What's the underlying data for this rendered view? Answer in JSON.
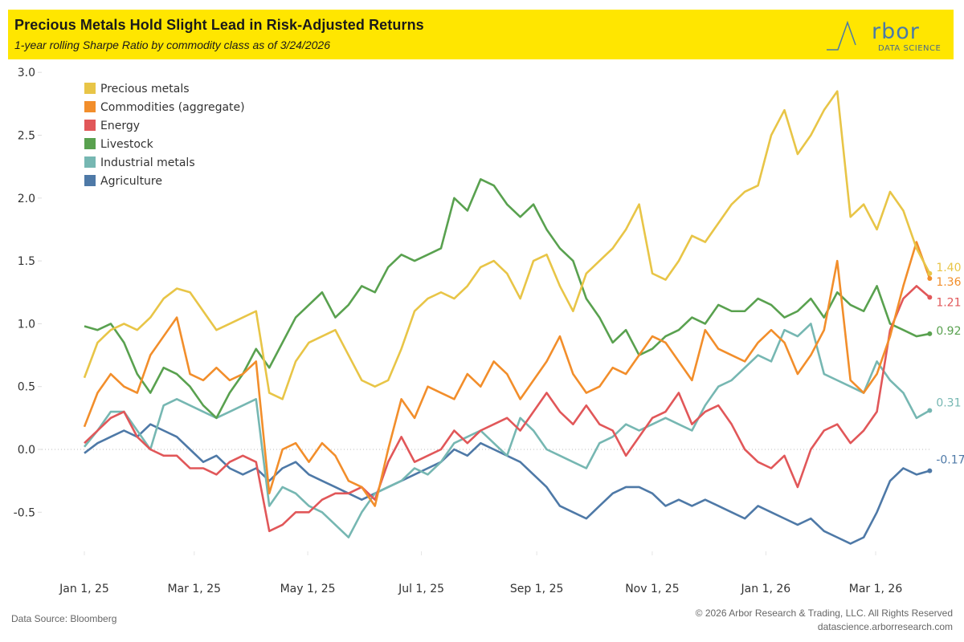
{
  "header": {
    "title": "Precious Metals Hold Slight Lead in Risk-Adjusted Returns",
    "subtitle": "1-year rolling Sharpe Ratio by commodity class as of 3/24/2026",
    "logo_word": "rbor",
    "logo_sub": "DATA SCIENCE",
    "banner_color": "#ffe600"
  },
  "footer": {
    "source": "Data Source: Bloomberg",
    "copyright": "© 2026 Arbor Research & Trading, LLC. All Rights Reserved",
    "website": "datascience.arborresearch.com"
  },
  "chart_data": {
    "type": "line",
    "title": "Precious Metals Hold Slight Lead in Risk-Adjusted Returns",
    "subtitle": "1-year rolling Sharpe Ratio by commodity class as of 3/24/2026",
    "xlabel": "",
    "ylabel": "",
    "ylim": [
      -0.9,
      3.0
    ],
    "yticks": [
      3.0,
      2.5,
      2.0,
      1.5,
      1.0,
      0.5,
      0.0,
      -0.5
    ],
    "ytick_labels": [
      "3.0",
      "2.5",
      "2.0",
      "1.5",
      "1.0",
      "0.5",
      "0.0",
      "-0.5"
    ],
    "xtick_labels": [
      "Jan 1, 25",
      "Mar 1, 25",
      "May 1, 25",
      "Jul 1, 25",
      "Sep 1, 25",
      "Nov 1, 25",
      "Jan 1, 26",
      "Mar 1, 26"
    ],
    "xtick_weeks": [
      0,
      8.43,
      17.14,
      25.86,
      34.71,
      43.57,
      52.29,
      60.71
    ],
    "x_units": "weeks since Jan 1, 2025",
    "zero_line": "dotted",
    "grid": false,
    "legend_position": "top-left",
    "series": [
      {
        "name": "Precious metals",
        "color": "#e8c547",
        "end_label": "1.40",
        "values": [
          0.57,
          0.85,
          0.95,
          1.0,
          0.95,
          1.05,
          1.2,
          1.28,
          1.25,
          1.1,
          0.95,
          1.0,
          1.05,
          1.1,
          0.45,
          0.4,
          0.7,
          0.85,
          0.9,
          0.95,
          0.75,
          0.55,
          0.5,
          0.55,
          0.8,
          1.1,
          1.2,
          1.25,
          1.2,
          1.3,
          1.45,
          1.5,
          1.4,
          1.2,
          1.5,
          1.55,
          1.3,
          1.1,
          1.4,
          1.5,
          1.6,
          1.75,
          1.95,
          1.4,
          1.35,
          1.5,
          1.7,
          1.65,
          1.8,
          1.95,
          2.05,
          2.1,
          2.5,
          2.7,
          2.35,
          2.5,
          2.7,
          2.85,
          1.85,
          1.95,
          1.75,
          2.05,
          1.9,
          1.6,
          1.4
        ]
      },
      {
        "name": "Commodities (aggregate)",
        "color": "#f28e2b",
        "end_label": "1.36",
        "values": [
          0.18,
          0.45,
          0.6,
          0.5,
          0.45,
          0.75,
          0.9,
          1.05,
          0.6,
          0.55,
          0.65,
          0.55,
          0.6,
          0.7,
          -0.35,
          0.0,
          0.05,
          -0.1,
          0.05,
          -0.05,
          -0.25,
          -0.3,
          -0.45,
          0.0,
          0.4,
          0.25,
          0.5,
          0.45,
          0.4,
          0.6,
          0.5,
          0.7,
          0.6,
          0.4,
          0.55,
          0.7,
          0.9,
          0.6,
          0.45,
          0.5,
          0.65,
          0.6,
          0.75,
          0.9,
          0.85,
          0.7,
          0.55,
          0.95,
          0.8,
          0.75,
          0.7,
          0.85,
          0.95,
          0.85,
          0.6,
          0.75,
          0.95,
          1.5,
          0.55,
          0.45,
          0.6,
          0.9,
          1.3,
          1.65,
          1.36
        ]
      },
      {
        "name": "Energy",
        "color": "#e15759",
        "end_label": "1.21",
        "values": [
          0.05,
          0.15,
          0.25,
          0.3,
          0.1,
          0.0,
          -0.05,
          -0.05,
          -0.15,
          -0.15,
          -0.2,
          -0.1,
          -0.05,
          -0.1,
          -0.65,
          -0.6,
          -0.5,
          -0.5,
          -0.4,
          -0.35,
          -0.35,
          -0.3,
          -0.4,
          -0.1,
          0.1,
          -0.1,
          -0.05,
          0.0,
          0.15,
          0.05,
          0.15,
          0.2,
          0.25,
          0.15,
          0.3,
          0.45,
          0.3,
          0.2,
          0.35,
          0.2,
          0.15,
          -0.05,
          0.1,
          0.25,
          0.3,
          0.45,
          0.2,
          0.3,
          0.35,
          0.2,
          0.0,
          -0.1,
          -0.15,
          -0.05,
          -0.3,
          0.0,
          0.15,
          0.2,
          0.05,
          0.15,
          0.3,
          0.95,
          1.2,
          1.3,
          1.21
        ]
      },
      {
        "name": "Livestock",
        "color": "#59a14f",
        "end_label": "0.92",
        "values": [
          0.98,
          0.95,
          1.0,
          0.85,
          0.6,
          0.45,
          0.65,
          0.6,
          0.5,
          0.35,
          0.25,
          0.45,
          0.6,
          0.8,
          0.65,
          0.85,
          1.05,
          1.15,
          1.25,
          1.05,
          1.15,
          1.3,
          1.25,
          1.45,
          1.55,
          1.5,
          1.55,
          1.6,
          2.0,
          1.9,
          2.15,
          2.1,
          1.95,
          1.85,
          1.95,
          1.75,
          1.6,
          1.5,
          1.2,
          1.05,
          0.85,
          0.95,
          0.75,
          0.8,
          0.9,
          0.95,
          1.05,
          1.0,
          1.15,
          1.1,
          1.1,
          1.2,
          1.15,
          1.05,
          1.1,
          1.2,
          1.05,
          1.25,
          1.15,
          1.1,
          1.3,
          1.0,
          0.95,
          0.9,
          0.92
        ]
      },
      {
        "name": "Industrial metals",
        "color": "#76b7b2",
        "end_label": "0.31",
        "values": [
          0.02,
          0.15,
          0.3,
          0.3,
          0.15,
          0.0,
          0.35,
          0.4,
          0.35,
          0.3,
          0.25,
          0.3,
          0.35,
          0.4,
          -0.45,
          -0.3,
          -0.35,
          -0.45,
          -0.5,
          -0.6,
          -0.7,
          -0.5,
          -0.35,
          -0.3,
          -0.25,
          -0.15,
          -0.2,
          -0.1,
          0.05,
          0.1,
          0.15,
          0.05,
          -0.05,
          0.25,
          0.15,
          0.0,
          -0.05,
          -0.1,
          -0.15,
          0.05,
          0.1,
          0.2,
          0.15,
          0.2,
          0.25,
          0.2,
          0.15,
          0.35,
          0.5,
          0.55,
          0.65,
          0.75,
          0.7,
          0.95,
          0.9,
          1.0,
          0.6,
          0.55,
          0.5,
          0.45,
          0.7,
          0.55,
          0.45,
          0.25,
          0.31
        ]
      },
      {
        "name": "Agriculture",
        "color": "#4e79a7",
        "end_label": "-0.17",
        "values": [
          -0.03,
          0.05,
          0.1,
          0.15,
          0.1,
          0.2,
          0.15,
          0.1,
          0.0,
          -0.1,
          -0.05,
          -0.15,
          -0.2,
          -0.15,
          -0.25,
          -0.15,
          -0.1,
          -0.2,
          -0.25,
          -0.3,
          -0.35,
          -0.4,
          -0.35,
          -0.3,
          -0.25,
          -0.2,
          -0.15,
          -0.1,
          0.0,
          -0.05,
          0.05,
          0.0,
          -0.05,
          -0.1,
          -0.2,
          -0.3,
          -0.45,
          -0.5,
          -0.55,
          -0.45,
          -0.35,
          -0.3,
          -0.3,
          -0.35,
          -0.45,
          -0.4,
          -0.45,
          -0.4,
          -0.45,
          -0.5,
          -0.55,
          -0.45,
          -0.5,
          -0.55,
          -0.6,
          -0.55,
          -0.65,
          -0.7,
          -0.75,
          -0.7,
          -0.5,
          -0.25,
          -0.15,
          -0.2,
          -0.17
        ]
      }
    ]
  }
}
